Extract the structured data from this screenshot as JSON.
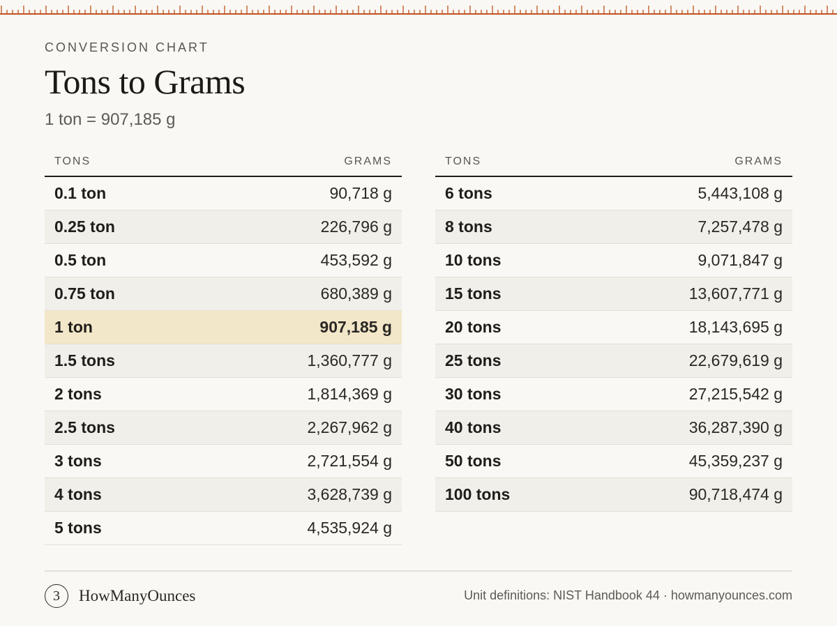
{
  "header": {
    "eyebrow": "CONVERSION CHART",
    "title": "Tons to Grams",
    "subtitle": "1 ton = 907,185 g"
  },
  "columns": {
    "from": "TONS",
    "to": "GRAMS"
  },
  "left_table": [
    {
      "tons": "0.1 ton",
      "grams": "90,718 g"
    },
    {
      "tons": "0.25 ton",
      "grams": "226,796 g"
    },
    {
      "tons": "0.5 ton",
      "grams": "453,592 g"
    },
    {
      "tons": "0.75 ton",
      "grams": "680,389 g"
    },
    {
      "tons": "1 ton",
      "grams": "907,185 g",
      "highlight": true
    },
    {
      "tons": "1.5 tons",
      "grams": "1,360,777 g"
    },
    {
      "tons": "2 tons",
      "grams": "1,814,369 g"
    },
    {
      "tons": "2.5 tons",
      "grams": "2,267,962 g"
    },
    {
      "tons": "3 tons",
      "grams": "2,721,554 g"
    },
    {
      "tons": "4 tons",
      "grams": "3,628,739 g"
    },
    {
      "tons": "5 tons",
      "grams": "4,535,924 g"
    }
  ],
  "right_table": [
    {
      "tons": "6 tons",
      "grams": "5,443,108 g"
    },
    {
      "tons": "8 tons",
      "grams": "7,257,478 g"
    },
    {
      "tons": "10 tons",
      "grams": "9,071,847 g"
    },
    {
      "tons": "15 tons",
      "grams": "13,607,771 g"
    },
    {
      "tons": "20 tons",
      "grams": "18,143,695 g"
    },
    {
      "tons": "25 tons",
      "grams": "22,679,619 g"
    },
    {
      "tons": "30 tons",
      "grams": "27,215,542 g"
    },
    {
      "tons": "40 tons",
      "grams": "36,287,390 g"
    },
    {
      "tons": "50 tons",
      "grams": "45,359,237 g"
    },
    {
      "tons": "100 tons",
      "grams": "90,718,474 g"
    }
  ],
  "footer": {
    "logo_glyph": "3",
    "brand": "HowManyOunces",
    "source": "Unit definitions: NIST Handbook 44 · howmanyounces.com"
  },
  "colors": {
    "ruler": "#c0531f",
    "highlight": "#f3e7c9",
    "background": "#f9f8f4"
  }
}
